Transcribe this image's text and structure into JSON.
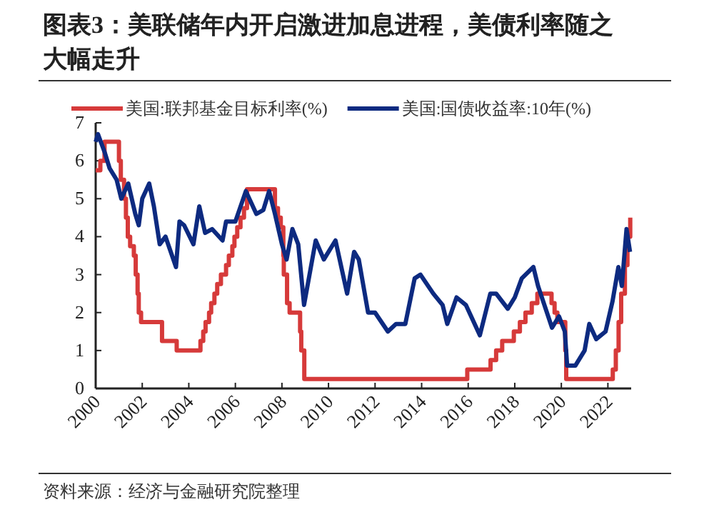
{
  "chart_data": {
    "type": "line",
    "title": "图表3：美联储年内开启激进加息进程，美债利率随之大幅走升",
    "annotations": [
      "资料来源：经济与金融研究院整理"
    ],
    "xlim": [
      2000,
      2023
    ],
    "xticks": [
      2000,
      2002,
      2004,
      2006,
      2008,
      2010,
      2012,
      2014,
      2016,
      2018,
      2020,
      2022
    ],
    "ylim": [
      0,
      7
    ],
    "yticks": [
      0,
      1,
      2,
      3,
      4,
      5,
      6,
      7
    ],
    "legend": "top",
    "marker": "none",
    "series": [
      {
        "name": "美国:联邦基金目标利率(%)",
        "color": "#d63a3a",
        "type": "step",
        "x": [
          2000.0,
          2000.2,
          2000.38,
          2001.0,
          2001.08,
          2001.22,
          2001.3,
          2001.38,
          2001.48,
          2001.64,
          2001.72,
          2001.8,
          2001.85,
          2001.95,
          2002.85,
          2003.48,
          2004.5,
          2004.62,
          2004.72,
          2004.87,
          2004.96,
          2005.1,
          2005.22,
          2005.38,
          2005.6,
          2005.72,
          2005.87,
          2005.96,
          2006.08,
          2006.22,
          2006.37,
          2006.5,
          2007.7,
          2007.83,
          2007.95,
          2008.06,
          2008.08,
          2008.22,
          2008.33,
          2008.78,
          2008.83,
          2008.96,
          2015.96,
          2016.96,
          2017.2,
          2017.46,
          2017.96,
          2018.22,
          2018.46,
          2018.73,
          2018.97,
          2019.58,
          2019.71,
          2019.83,
          2020.17,
          2020.21,
          2022.21,
          2022.34,
          2022.46,
          2022.57,
          2022.73,
          2022.84,
          2022.96
        ],
        "values": [
          5.75,
          6.0,
          6.5,
          6.0,
          5.5,
          5.0,
          4.5,
          4.0,
          3.75,
          3.5,
          3.0,
          2.5,
          2.0,
          1.75,
          1.25,
          1.0,
          1.25,
          1.5,
          1.75,
          2.0,
          2.25,
          2.5,
          2.75,
          3.0,
          3.25,
          3.5,
          3.75,
          4.0,
          4.25,
          4.5,
          4.75,
          5.25,
          4.75,
          4.5,
          4.25,
          3.5,
          3.0,
          2.25,
          2.0,
          1.5,
          1.0,
          0.25,
          0.5,
          0.75,
          1.0,
          1.25,
          1.5,
          1.75,
          2.0,
          2.25,
          2.5,
          2.25,
          2.0,
          1.75,
          1.0,
          0.25,
          0.5,
          1.0,
          1.75,
          2.5,
          3.25,
          4.0,
          4.5
        ]
      },
      {
        "name": "美国:国债收益率:10年(%)",
        "color": "#0d2a80",
        "x": [
          2000.0,
          2000.1,
          2000.4,
          2000.6,
          2000.9,
          2001.1,
          2001.4,
          2001.7,
          2001.85,
          2002.0,
          2002.3,
          2002.5,
          2002.75,
          2003.0,
          2003.45,
          2003.6,
          2003.8,
          2004.2,
          2004.45,
          2004.7,
          2005.0,
          2005.45,
          2005.6,
          2006.0,
          2006.45,
          2006.9,
          2007.2,
          2007.45,
          2007.7,
          2008.0,
          2008.2,
          2008.45,
          2008.7,
          2008.95,
          2009.45,
          2009.8,
          2010.3,
          2010.8,
          2011.1,
          2011.3,
          2011.7,
          2012.0,
          2012.55,
          2012.9,
          2013.3,
          2013.7,
          2013.95,
          2014.5,
          2014.9,
          2015.1,
          2015.5,
          2015.9,
          2016.5,
          2016.95,
          2017.2,
          2017.7,
          2018.0,
          2018.3,
          2018.8,
          2019.0,
          2019.6,
          2019.9,
          2020.15,
          2020.25,
          2020.6,
          2021.0,
          2021.2,
          2021.5,
          2021.9,
          2022.2,
          2022.45,
          2022.6,
          2022.8,
          2022.95
        ],
        "values": [
          6.5,
          6.7,
          6.2,
          5.8,
          5.5,
          5.0,
          5.4,
          4.6,
          4.3,
          5.0,
          5.4,
          4.8,
          3.8,
          4.0,
          3.2,
          4.4,
          4.3,
          3.8,
          4.8,
          4.1,
          4.2,
          3.9,
          4.4,
          4.4,
          5.2,
          4.6,
          4.7,
          5.2,
          4.6,
          3.8,
          3.4,
          4.2,
          3.8,
          2.2,
          3.9,
          3.4,
          3.9,
          2.5,
          3.6,
          3.4,
          2.0,
          2.0,
          1.5,
          1.7,
          1.7,
          2.9,
          3.0,
          2.5,
          2.2,
          1.7,
          2.4,
          2.2,
          1.4,
          2.5,
          2.5,
          2.1,
          2.4,
          2.9,
          3.2,
          2.7,
          1.6,
          1.9,
          1.5,
          0.6,
          0.6,
          1.0,
          1.7,
          1.3,
          1.5,
          2.3,
          3.2,
          2.7,
          4.2,
          3.6
        ]
      }
    ]
  }
}
